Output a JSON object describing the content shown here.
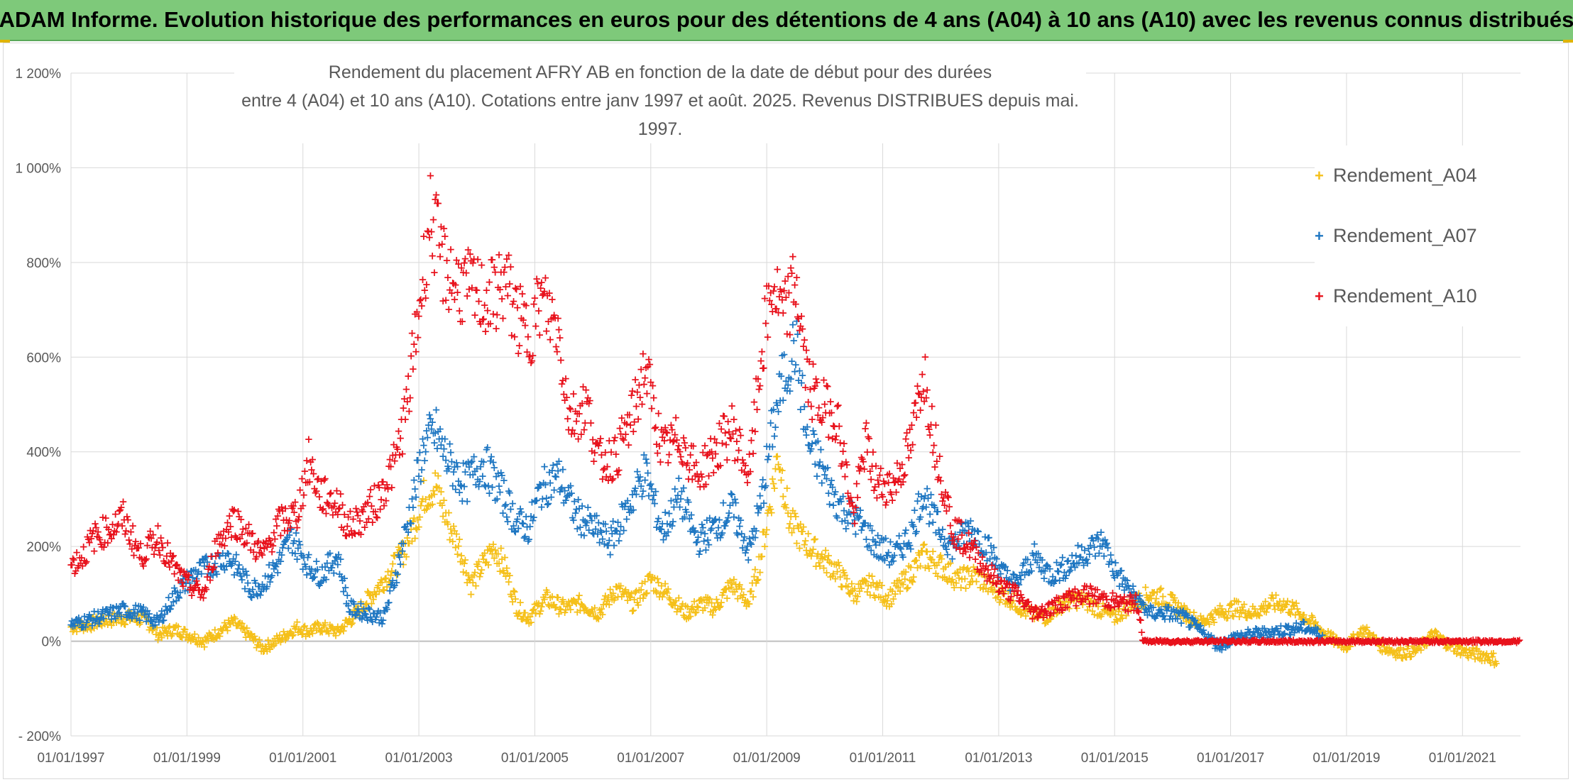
{
  "banner": {
    "title": "ADAM Informe. Evolution historique des performances en euros pour des détentions de 4 ans (A04) à 10 ans (A10) avec les revenus connus distribués"
  },
  "colors": {
    "banner_bg": "#7ec97a",
    "A04": "#f5c01a",
    "A07": "#1f77c2",
    "A10": "#e8121c",
    "grid": "#d9d9d9",
    "axis_text": "#595959"
  },
  "chart_data": {
    "type": "scatter",
    "marker": "plus",
    "title_line1": "Rendement du placement AFRY AB en fonction de la date de début pour des durées",
    "title_line2": "entre 4 (A04) et 10 ans (A10). Cotations entre janv 1997 et août. 2025. Revenus DISTRIBUES depuis mai. 1997.",
    "ylim": [
      -200,
      1200
    ],
    "y_ticks": [
      -200,
      0,
      200,
      400,
      600,
      800,
      1000,
      1200
    ],
    "y_tick_labels": [
      "- 200%",
      "0%",
      "200%",
      "400%",
      "600%",
      "800%",
      "1 000%",
      "1 200%"
    ],
    "x_range": [
      1997.0,
      2022.0
    ],
    "x_ticks": [
      1997,
      1999,
      2001,
      2003,
      2005,
      2007,
      2009,
      2011,
      2013,
      2015,
      2017,
      2019,
      2021
    ],
    "x_tick_labels": [
      "01/01/1997",
      "01/01/1999",
      "01/01/2001",
      "01/01/2003",
      "01/01/2005",
      "01/01/2007",
      "01/01/2009",
      "01/01/2011",
      "01/01/2013",
      "01/01/2015",
      "01/01/2017",
      "01/01/2019",
      "01/01/2021"
    ],
    "legend_position": "right",
    "grid": true,
    "series": [
      {
        "name": "Rendement_A04",
        "points": [
          [
            1997.0,
            30
          ],
          [
            1997.3,
            35
          ],
          [
            1997.6,
            45
          ],
          [
            1998.0,
            50
          ],
          [
            1998.3,
            45
          ],
          [
            1998.5,
            15
          ],
          [
            1998.8,
            25
          ],
          [
            1999.0,
            15
          ],
          [
            1999.3,
            0
          ],
          [
            1999.6,
            25
          ],
          [
            1999.8,
            40
          ],
          [
            2000.1,
            10
          ],
          [
            2000.3,
            -15
          ],
          [
            2000.6,
            5
          ],
          [
            2000.9,
            30
          ],
          [
            2001.1,
            20
          ],
          [
            2001.3,
            30
          ],
          [
            2001.6,
            20
          ],
          [
            2001.9,
            55
          ],
          [
            2002.2,
            100
          ],
          [
            2002.4,
            130
          ],
          [
            2002.7,
            180
          ],
          [
            2002.9,
            240
          ],
          [
            2003.1,
            310
          ],
          [
            2003.3,
            330
          ],
          [
            2003.5,
            250
          ],
          [
            2003.7,
            200
          ],
          [
            2003.9,
            120
          ],
          [
            2004.1,
            160
          ],
          [
            2004.3,
            200
          ],
          [
            2004.5,
            150
          ],
          [
            2004.7,
            70
          ],
          [
            2004.9,
            50
          ],
          [
            2005.2,
            90
          ],
          [
            2005.5,
            70
          ],
          [
            2005.8,
            80
          ],
          [
            2006.1,
            60
          ],
          [
            2006.4,
            110
          ],
          [
            2006.7,
            80
          ],
          [
            2007.0,
            130
          ],
          [
            2007.3,
            100
          ],
          [
            2007.6,
            60
          ],
          [
            2007.9,
            80
          ],
          [
            2008.1,
            70
          ],
          [
            2008.4,
            120
          ],
          [
            2008.7,
            80
          ],
          [
            2008.9,
            180
          ],
          [
            2009.1,
            320
          ],
          [
            2009.2,
            400
          ],
          [
            2009.4,
            250
          ],
          [
            2009.6,
            220
          ],
          [
            2009.9,
            180
          ],
          [
            2010.2,
            150
          ],
          [
            2010.5,
            100
          ],
          [
            2010.8,
            120
          ],
          [
            2011.1,
            90
          ],
          [
            2011.4,
            130
          ],
          [
            2011.7,
            180
          ],
          [
            2012.0,
            160
          ],
          [
            2012.3,
            130
          ],
          [
            2012.6,
            140
          ],
          [
            2012.9,
            110
          ],
          [
            2013.2,
            90
          ],
          [
            2013.5,
            60
          ],
          [
            2013.8,
            50
          ],
          [
            2014.1,
            80
          ],
          [
            2014.4,
            90
          ],
          [
            2014.7,
            70
          ],
          [
            2015.0,
            50
          ],
          [
            2015.3,
            80
          ],
          [
            2015.6,
            100
          ],
          [
            2015.9,
            90
          ],
          [
            2016.2,
            60
          ],
          [
            2016.5,
            40
          ],
          [
            2016.8,
            60
          ],
          [
            2017.1,
            70
          ],
          [
            2017.4,
            60
          ],
          [
            2017.7,
            80
          ],
          [
            2017.9,
            80
          ],
          [
            2018.2,
            60
          ],
          [
            2018.5,
            30
          ],
          [
            2018.8,
            0
          ],
          [
            2019.0,
            -10
          ],
          [
            2019.3,
            25
          ],
          [
            2019.6,
            -10
          ],
          [
            2019.9,
            -25
          ],
          [
            2020.2,
            -20
          ],
          [
            2020.5,
            15
          ],
          [
            2020.8,
            -10
          ],
          [
            2021.1,
            -25
          ],
          [
            2021.4,
            -30
          ],
          [
            2021.6,
            -40
          ]
        ]
      },
      {
        "name": "Rendement_A07",
        "points": [
          [
            1997.0,
            35
          ],
          [
            1997.3,
            45
          ],
          [
            1997.6,
            55
          ],
          [
            1997.9,
            65
          ],
          [
            1998.2,
            60
          ],
          [
            1998.5,
            40
          ],
          [
            1998.8,
            100
          ],
          [
            1999.1,
            140
          ],
          [
            1999.4,
            160
          ],
          [
            1999.7,
            180
          ],
          [
            1999.9,
            150
          ],
          [
            2000.1,
            110
          ],
          [
            2000.3,
            120
          ],
          [
            2000.6,
            170
          ],
          [
            2000.8,
            220
          ],
          [
            2001.1,
            160
          ],
          [
            2001.3,
            140
          ],
          [
            2001.6,
            180
          ],
          [
            2001.8,
            70
          ],
          [
            2002.1,
            60
          ],
          [
            2002.4,
            50
          ],
          [
            2002.6,
            140
          ],
          [
            2002.9,
            300
          ],
          [
            2003.1,
            420
          ],
          [
            2003.3,
            440
          ],
          [
            2003.5,
            380
          ],
          [
            2003.8,
            330
          ],
          [
            2004.1,
            380
          ],
          [
            2004.4,
            320
          ],
          [
            2004.7,
            250
          ],
          [
            2004.9,
            240
          ],
          [
            2005.1,
            320
          ],
          [
            2005.4,
            350
          ],
          [
            2005.7,
            270
          ],
          [
            2006.0,
            240
          ],
          [
            2006.3,
            210
          ],
          [
            2006.6,
            280
          ],
          [
            2006.9,
            360
          ],
          [
            2007.2,
            230
          ],
          [
            2007.5,
            310
          ],
          [
            2007.8,
            210
          ],
          [
            2008.1,
            240
          ],
          [
            2008.4,
            280
          ],
          [
            2008.7,
            190
          ],
          [
            2008.9,
            290
          ],
          [
            2009.1,
            450
          ],
          [
            2009.3,
            560
          ],
          [
            2009.5,
            630
          ],
          [
            2009.7,
            420
          ],
          [
            2009.9,
            380
          ],
          [
            2010.1,
            320
          ],
          [
            2010.3,
            280
          ],
          [
            2010.6,
            250
          ],
          [
            2010.9,
            200
          ],
          [
            2011.2,
            180
          ],
          [
            2011.5,
            230
          ],
          [
            2011.7,
            320
          ],
          [
            2011.9,
            250
          ],
          [
            2012.2,
            200
          ],
          [
            2012.5,
            240
          ],
          [
            2012.8,
            200
          ],
          [
            2013.1,
            140
          ],
          [
            2013.3,
            120
          ],
          [
            2013.6,
            180
          ],
          [
            2013.9,
            140
          ],
          [
            2014.2,
            160
          ],
          [
            2014.5,
            190
          ],
          [
            2014.8,
            210
          ],
          [
            2015.0,
            150
          ],
          [
            2015.3,
            100
          ],
          [
            2015.6,
            60
          ],
          [
            2015.9,
            60
          ],
          [
            2016.2,
            50
          ],
          [
            2016.5,
            20
          ],
          [
            2016.8,
            -10
          ],
          [
            2017.1,
            10
          ],
          [
            2017.4,
            15
          ],
          [
            2017.7,
            20
          ],
          [
            2018.0,
            25
          ],
          [
            2018.3,
            30
          ],
          [
            2018.6,
            10
          ]
        ]
      },
      {
        "name": "Rendement_A10",
        "points": [
          [
            1997.0,
            160
          ],
          [
            1997.2,
            180
          ],
          [
            1997.4,
            220
          ],
          [
            1997.7,
            240
          ],
          [
            1997.9,
            260
          ],
          [
            1998.2,
            180
          ],
          [
            1998.5,
            220
          ],
          [
            1998.8,
            150
          ],
          [
            1999.0,
            120
          ],
          [
            1999.3,
            100
          ],
          [
            1999.5,
            200
          ],
          [
            1999.8,
            260
          ],
          [
            2000.0,
            230
          ],
          [
            2000.3,
            180
          ],
          [
            2000.6,
            250
          ],
          [
            2000.9,
            270
          ],
          [
            2001.1,
            380
          ],
          [
            2001.3,
            310
          ],
          [
            2001.6,
            290
          ],
          [
            2001.8,
            240
          ],
          [
            2002.0,
            260
          ],
          [
            2002.3,
            300
          ],
          [
            2002.6,
            380
          ],
          [
            2002.8,
            500
          ],
          [
            2003.0,
            700
          ],
          [
            2003.2,
            900
          ],
          [
            2003.4,
            800
          ],
          [
            2003.6,
            760
          ],
          [
            2003.9,
            740
          ],
          [
            2004.2,
            720
          ],
          [
            2004.5,
            760
          ],
          [
            2004.7,
            680
          ],
          [
            2004.9,
            650
          ],
          [
            2005.1,
            720
          ],
          [
            2005.4,
            660
          ],
          [
            2005.6,
            470
          ],
          [
            2005.9,
            500
          ],
          [
            2006.1,
            380
          ],
          [
            2006.4,
            390
          ],
          [
            2006.7,
            480
          ],
          [
            2006.9,
            580
          ],
          [
            2007.2,
            400
          ],
          [
            2007.5,
            430
          ],
          [
            2007.8,
            350
          ],
          [
            2008.1,
            400
          ],
          [
            2008.4,
            450
          ],
          [
            2008.7,
            350
          ],
          [
            2008.9,
            600
          ],
          [
            2009.1,
            750
          ],
          [
            2009.3,
            680
          ],
          [
            2009.5,
            760
          ],
          [
            2009.7,
            550
          ],
          [
            2009.9,
            500
          ],
          [
            2010.2,
            480
          ],
          [
            2010.5,
            260
          ],
          [
            2010.7,
            420
          ],
          [
            2010.9,
            330
          ],
          [
            2011.2,
            330
          ],
          [
            2011.5,
            420
          ],
          [
            2011.7,
            580
          ],
          [
            2011.9,
            420
          ],
          [
            2012.2,
            240
          ],
          [
            2012.5,
            200
          ],
          [
            2012.8,
            150
          ],
          [
            2013.1,
            110
          ],
          [
            2013.3,
            100
          ],
          [
            2013.6,
            60
          ],
          [
            2013.9,
            70
          ],
          [
            2014.2,
            90
          ],
          [
            2014.5,
            100
          ],
          [
            2014.8,
            90
          ],
          [
            2015.1,
            80
          ],
          [
            2015.4,
            80
          ],
          [
            2015.5,
            0
          ],
          [
            2016.5,
            0
          ],
          [
            2017.5,
            0
          ],
          [
            2018.5,
            0
          ],
          [
            2019.5,
            0
          ],
          [
            2020.5,
            0
          ],
          [
            2021.5,
            0
          ],
          [
            2022.0,
            0
          ]
        ]
      }
    ]
  }
}
